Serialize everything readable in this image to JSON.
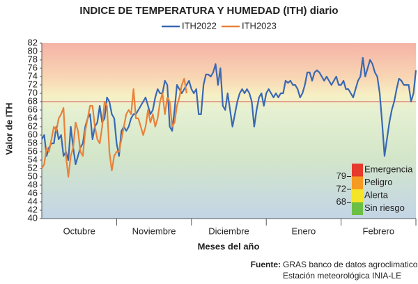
{
  "chart_data": {
    "type": "line",
    "title": "INDICE DE TEMPERATURA Y HUMEDAD (ITH) diario",
    "y_label": "Valor de ITH",
    "x_label": "Meses del año",
    "months": [
      "Octubre",
      "Noviembre",
      "Diciembre",
      "Enero",
      "Febrero"
    ],
    "ylim": [
      40,
      82
    ],
    "yticks": [
      40,
      42,
      44,
      46,
      48,
      50,
      52,
      54,
      56,
      58,
      60,
      62,
      64,
      66,
      68,
      70,
      72,
      74,
      76,
      78,
      80,
      82
    ],
    "series": [
      {
        "name": "ITH2022",
        "color": "#3a68b2",
        "values": [
          59,
          60,
          55,
          57,
          58,
          58,
          62,
          59,
          60,
          55,
          56,
          54,
          62,
          57,
          53,
          55,
          57,
          58,
          62,
          64,
          65,
          59,
          62,
          63,
          67,
          63,
          64,
          69,
          68,
          65,
          64,
          58,
          55,
          61,
          62,
          61,
          62,
          64,
          65,
          65,
          66,
          67,
          68,
          69,
          67,
          65,
          66,
          69,
          71,
          70,
          70,
          73,
          72,
          62,
          61,
          66,
          72,
          71,
          70,
          71,
          72,
          73,
          71,
          70,
          71,
          65,
          65,
          72,
          74.5,
          74.5,
          74,
          75,
          77,
          72,
          76,
          67,
          66,
          70,
          66,
          62,
          65,
          68,
          70,
          71,
          70,
          71,
          70,
          68,
          62,
          66,
          69,
          70,
          67,
          70,
          71,
          70,
          69,
          70,
          69,
          70,
          70,
          73,
          72.5,
          73,
          72,
          72,
          71,
          69,
          70,
          72,
          75,
          75,
          73,
          75,
          75.5,
          75,
          74,
          73,
          74,
          73,
          72,
          73,
          74,
          72,
          72,
          73,
          71,
          71,
          70,
          69,
          71,
          73,
          74,
          78.5,
          74,
          76,
          78,
          77,
          75,
          74,
          70,
          63,
          55,
          59,
          63,
          66,
          68,
          71,
          73.5,
          73,
          72,
          72,
          72,
          68,
          70,
          75.5
        ]
      },
      {
        "name": "ITH2023",
        "color": "#e8823a",
        "values": [
          52,
          53,
          57,
          56,
          59,
          62,
          61,
          64,
          65,
          66.5,
          55,
          50,
          55,
          57,
          63,
          61,
          56,
          55,
          61,
          64,
          67,
          67,
          62,
          59,
          58,
          62,
          68,
          67,
          56,
          51.5,
          55,
          56,
          56,
          59,
          62,
          65,
          66,
          65,
          71,
          64,
          64,
          62,
          60,
          62,
          66,
          63,
          65,
          62,
          64,
          68,
          70,
          65,
          69,
          68,
          62,
          63,
          67,
          69,
          72,
          73.5,
          70
        ]
      }
    ],
    "risk_legend": {
      "items": [
        {
          "label": "Emergencia",
          "color": "#e53a2c"
        },
        {
          "label": "Peligro",
          "color": "#f59a22"
        },
        {
          "label": "Alerta",
          "color": "#f5e52a"
        },
        {
          "label": "Sin riesgo",
          "color": "#6cbf45"
        }
      ],
      "thresholds": [
        79,
        72,
        68
      ]
    },
    "source_label": "Fuente:",
    "source_lines": [
      "GRAS banco de datos agroclimatico",
      "Estación meteorológica INIA-LE"
    ]
  }
}
